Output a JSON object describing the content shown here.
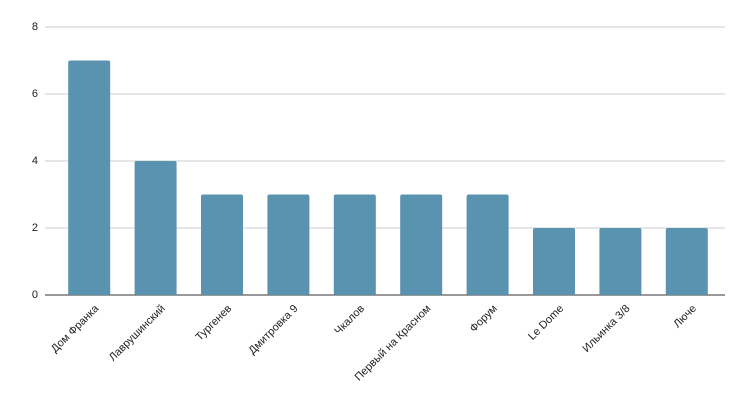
{
  "chart_data": {
    "type": "bar",
    "categories": [
      "Дом Франка",
      "Лаврушинский",
      "Тургенев",
      "Дмитровка 9",
      "Чкалов",
      "Первый на Красном",
      "Форум",
      "Le Dome",
      "Ильинка 3/8",
      "Люче"
    ],
    "values": [
      7,
      4,
      3,
      3,
      3,
      3,
      3,
      2,
      2,
      2
    ],
    "color": "#5a93b0",
    "ylim": [
      0,
      8
    ],
    "yticks": [
      0,
      2,
      4,
      6,
      8
    ],
    "grid": true
  }
}
